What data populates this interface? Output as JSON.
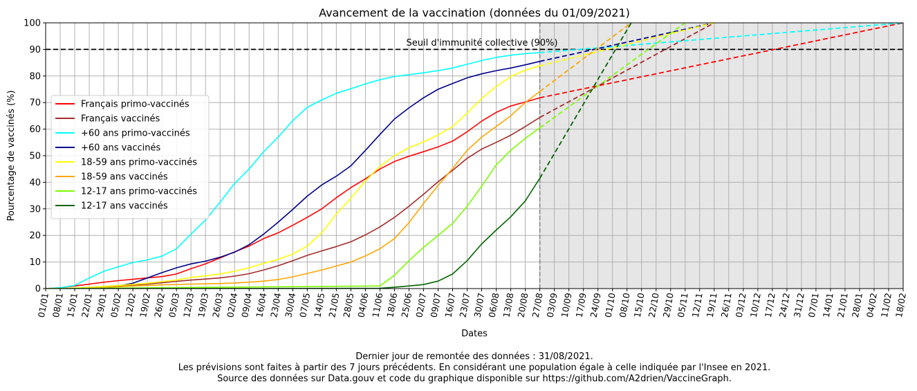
{
  "chart_data": {
    "type": "line",
    "title": "Avancement de la vaccination (données du 01/09/2021)",
    "xlabel": "Dates",
    "ylabel": "Pourcentage de vaccinés (%)",
    "ylim": [
      0,
      100
    ],
    "yticks": [
      0,
      10,
      20,
      30,
      40,
      50,
      60,
      70,
      80,
      90,
      100
    ],
    "xlim": [
      "2021-01-01",
      "2022-02-18"
    ],
    "x_tick_labels": [
      "01/01",
      "08/01",
      "15/01",
      "22/01",
      "29/01",
      "05/02",
      "12/02",
      "19/02",
      "26/02",
      "05/03",
      "12/03",
      "19/03",
      "26/03",
      "02/04",
      "09/04",
      "16/04",
      "23/04",
      "30/04",
      "07/05",
      "14/05",
      "21/05",
      "28/05",
      "04/06",
      "11/06",
      "18/06",
      "25/06",
      "02/07",
      "09/07",
      "16/07",
      "23/07",
      "30/07",
      "06/08",
      "13/08",
      "20/08",
      "27/08",
      "03/09",
      "10/09",
      "17/09",
      "24/09",
      "01/10",
      "08/10",
      "15/10",
      "22/10",
      "29/10",
      "05/11",
      "12/11",
      "19/11",
      "26/11",
      "03/12",
      "10/12",
      "17/12",
      "24/12",
      "31/12",
      "07/01",
      "14/01",
      "21/01",
      "28/01",
      "04/02",
      "11/02",
      "18/02"
    ],
    "grid": true,
    "legend_position": "center-left",
    "forecast_start": "2021-08-27",
    "forecast_region_color": "#e6e6e6",
    "threshold": {
      "value": 90,
      "label": "Seuil d'immunité collective (90%)",
      "color": "#000000"
    },
    "series": [
      {
        "name": "Français primo-vaccinés",
        "color": "#ff0000",
        "x": [
          "2021-01-01",
          "2021-01-08",
          "2021-01-15",
          "2021-01-22",
          "2021-01-29",
          "2021-02-05",
          "2021-02-12",
          "2021-02-19",
          "2021-02-26",
          "2021-03-05",
          "2021-03-12",
          "2021-03-19",
          "2021-03-26",
          "2021-04-02",
          "2021-04-09",
          "2021-04-16",
          "2021-04-23",
          "2021-04-30",
          "2021-05-07",
          "2021-05-14",
          "2021-05-21",
          "2021-05-28",
          "2021-06-04",
          "2021-06-11",
          "2021-06-18",
          "2021-06-25",
          "2021-07-02",
          "2021-07-09",
          "2021-07-16",
          "2021-07-23",
          "2021-07-30",
          "2021-08-06",
          "2021-08-13",
          "2021-08-20",
          "2021-08-27"
        ],
        "values": [
          0,
          0.3,
          1.0,
          1.7,
          2.4,
          3.0,
          3.5,
          4.0,
          4.5,
          5.5,
          7.5,
          9.3,
          11.5,
          13.8,
          16.0,
          18.8,
          21.0,
          23.8,
          26.8,
          30.0,
          34.2,
          38.0,
          41.3,
          45.0,
          47.8,
          49.8,
          51.5,
          53.3,
          55.5,
          59.0,
          63.0,
          66.3,
          68.7,
          70.2,
          71.8
        ],
        "forecast": {
          "x": [
            "2021-08-27",
            "2022-02-18"
          ],
          "values": [
            71.8,
            100
          ]
        }
      },
      {
        "name": "Français vaccinés",
        "color": "#a52a2a",
        "x": [
          "2021-01-01",
          "2021-01-08",
          "2021-01-15",
          "2021-01-22",
          "2021-01-29",
          "2021-02-05",
          "2021-02-12",
          "2021-02-19",
          "2021-02-26",
          "2021-03-05",
          "2021-03-12",
          "2021-03-19",
          "2021-03-26",
          "2021-04-02",
          "2021-04-09",
          "2021-04-16",
          "2021-04-23",
          "2021-04-30",
          "2021-05-07",
          "2021-05-14",
          "2021-05-21",
          "2021-05-28",
          "2021-06-04",
          "2021-06-11",
          "2021-06-18",
          "2021-06-25",
          "2021-07-02",
          "2021-07-09",
          "2021-07-16",
          "2021-07-23",
          "2021-07-30",
          "2021-08-06",
          "2021-08-13",
          "2021-08-20",
          "2021-08-27"
        ],
        "values": [
          0,
          0,
          0,
          0.2,
          0.5,
          0.9,
          1.3,
          1.7,
          2.2,
          2.7,
          3.2,
          3.6,
          4.0,
          4.7,
          5.6,
          7.0,
          8.6,
          10.5,
          12.5,
          14.2,
          15.8,
          17.6,
          20.2,
          23.2,
          26.8,
          31.0,
          35.5,
          40.2,
          44.5,
          49.0,
          52.5,
          55.0,
          57.7,
          61.0,
          64.4
        ],
        "forecast": {
          "x": [
            "2021-08-27",
            "2021-11-19"
          ],
          "values": [
            64.4,
            100
          ]
        }
      },
      {
        "name": "+60 ans primo-vaccinés",
        "color": "#00ffff",
        "x": [
          "2021-01-01",
          "2021-01-08",
          "2021-01-15",
          "2021-01-22",
          "2021-01-29",
          "2021-02-05",
          "2021-02-12",
          "2021-02-19",
          "2021-02-26",
          "2021-03-05",
          "2021-03-12",
          "2021-03-19",
          "2021-03-26",
          "2021-04-02",
          "2021-04-09",
          "2021-04-16",
          "2021-04-23",
          "2021-04-30",
          "2021-05-07",
          "2021-05-14",
          "2021-05-21",
          "2021-05-28",
          "2021-06-04",
          "2021-06-11",
          "2021-06-18",
          "2021-06-25",
          "2021-07-02",
          "2021-07-09",
          "2021-07-16",
          "2021-07-23",
          "2021-07-30",
          "2021-08-06",
          "2021-08-13",
          "2021-08-20",
          "2021-08-27"
        ],
        "values": [
          0,
          0.3,
          1.2,
          4.0,
          6.5,
          8.2,
          9.8,
          10.8,
          12.2,
          15.0,
          20.5,
          25.8,
          32.5,
          39.5,
          45.0,
          51.5,
          57.0,
          63.2,
          68.2,
          71.0,
          73.5,
          75.2,
          77.0,
          78.6,
          79.8,
          80.5,
          81.2,
          82.0,
          83.0,
          84.4,
          85.8,
          87.0,
          87.8,
          88.4,
          88.8
        ],
        "forecast": {
          "x": [
            "2021-08-27",
            "2022-02-18"
          ],
          "values": [
            88.8,
            100
          ]
        }
      },
      {
        "name": "+60 ans vaccinés",
        "color": "#00008b",
        "x": [
          "2021-01-01",
          "2021-01-08",
          "2021-01-15",
          "2021-01-22",
          "2021-01-29",
          "2021-02-05",
          "2021-02-12",
          "2021-02-19",
          "2021-02-26",
          "2021-03-05",
          "2021-03-12",
          "2021-03-19",
          "2021-03-26",
          "2021-04-02",
          "2021-04-09",
          "2021-04-16",
          "2021-04-23",
          "2021-04-30",
          "2021-05-07",
          "2021-05-14",
          "2021-05-21",
          "2021-05-28",
          "2021-06-04",
          "2021-06-11",
          "2021-06-18",
          "2021-06-25",
          "2021-07-02",
          "2021-07-09",
          "2021-07-16",
          "2021-07-23",
          "2021-07-30",
          "2021-08-06",
          "2021-08-13",
          "2021-08-20",
          "2021-08-27"
        ],
        "values": [
          0,
          0,
          0,
          0.2,
          0.5,
          1.0,
          2.0,
          4.0,
          6.0,
          7.8,
          9.3,
          10.3,
          11.8,
          13.7,
          16.5,
          20.5,
          25.0,
          29.8,
          34.8,
          39.0,
          42.3,
          46.2,
          52.0,
          58.0,
          63.8,
          68.0,
          71.8,
          75.0,
          77.2,
          79.3,
          80.8,
          82.0,
          83.0,
          84.2,
          85.5
        ],
        "forecast": {
          "x": [
            "2021-08-27",
            "2021-11-19"
          ],
          "values": [
            85.5,
            100
          ]
        }
      },
      {
        "name": "18-59 ans primo-vaccinés",
        "color": "#ffff00",
        "x": [
          "2021-01-01",
          "2021-01-08",
          "2021-01-15",
          "2021-01-22",
          "2021-01-29",
          "2021-02-05",
          "2021-02-12",
          "2021-02-19",
          "2021-02-26",
          "2021-03-05",
          "2021-03-12",
          "2021-03-19",
          "2021-03-26",
          "2021-04-02",
          "2021-04-09",
          "2021-04-16",
          "2021-04-23",
          "2021-04-30",
          "2021-05-07",
          "2021-05-14",
          "2021-05-21",
          "2021-05-28",
          "2021-06-04",
          "2021-06-11",
          "2021-06-18",
          "2021-06-25",
          "2021-07-02",
          "2021-07-09",
          "2021-07-16",
          "2021-07-23",
          "2021-07-30",
          "2021-08-06",
          "2021-08-13",
          "2021-08-20",
          "2021-08-27"
        ],
        "values": [
          0,
          0,
          0.2,
          0.5,
          0.8,
          1.2,
          1.6,
          2.0,
          2.6,
          3.2,
          4.2,
          4.8,
          5.5,
          6.5,
          7.8,
          9.5,
          11.0,
          13.0,
          16.0,
          21.0,
          28.0,
          34.0,
          40.5,
          46.0,
          50.0,
          53.0,
          55.2,
          57.8,
          61.0,
          66.0,
          71.5,
          76.0,
          79.8,
          82.2,
          83.8
        ],
        "forecast": {
          "x": [
            "2021-08-27",
            "2021-11-19"
          ],
          "values": [
            83.8,
            100
          ]
        }
      },
      {
        "name": "18-59 ans vaccinés",
        "color": "#ffa500",
        "x": [
          "2021-01-01",
          "2021-01-08",
          "2021-01-15",
          "2021-01-22",
          "2021-01-29",
          "2021-02-05",
          "2021-02-12",
          "2021-02-19",
          "2021-02-26",
          "2021-03-05",
          "2021-03-12",
          "2021-03-19",
          "2021-03-26",
          "2021-04-02",
          "2021-04-09",
          "2021-04-16",
          "2021-04-23",
          "2021-04-30",
          "2021-05-07",
          "2021-05-14",
          "2021-05-21",
          "2021-05-28",
          "2021-06-04",
          "2021-06-11",
          "2021-06-18",
          "2021-06-25",
          "2021-07-02",
          "2021-07-09",
          "2021-07-16",
          "2021-07-23",
          "2021-07-30",
          "2021-08-06",
          "2021-08-13",
          "2021-08-20",
          "2021-08-27"
        ],
        "values": [
          0,
          0,
          0,
          0.2,
          0.4,
          0.7,
          1.0,
          1.2,
          1.4,
          1.5,
          1.7,
          1.8,
          1.9,
          2.1,
          2.4,
          2.8,
          3.4,
          4.4,
          5.7,
          7.0,
          8.5,
          10.0,
          12.3,
          15.0,
          18.8,
          24.8,
          32.0,
          38.8,
          45.2,
          52.0,
          57.0,
          61.0,
          65.0,
          70.0,
          74.2
        ],
        "forecast": {
          "x": [
            "2021-08-27",
            "2021-10-10"
          ],
          "values": [
            74.2,
            100
          ]
        }
      },
      {
        "name": "12-17 ans primo-vaccinés",
        "color": "#7cfc00",
        "x": [
          "2021-01-01",
          "2021-06-11",
          "2021-06-18",
          "2021-06-25",
          "2021-07-02",
          "2021-07-09",
          "2021-07-16",
          "2021-07-23",
          "2021-07-30",
          "2021-08-06",
          "2021-08-13",
          "2021-08-20",
          "2021-08-27"
        ],
        "values": [
          0,
          1.0,
          5.0,
          10.5,
          15.5,
          20.0,
          24.5,
          31.0,
          38.5,
          46.5,
          52.0,
          56.5,
          60.5
        ],
        "forecast": {
          "x": [
            "2021-08-27",
            "2021-11-05"
          ],
          "values": [
            60.5,
            100
          ]
        }
      },
      {
        "name": "12-17 ans vaccinés",
        "color": "#006400",
        "x": [
          "2021-01-01",
          "2021-06-11",
          "2021-06-18",
          "2021-06-25",
          "2021-07-02",
          "2021-07-09",
          "2021-07-16",
          "2021-07-23",
          "2021-07-30",
          "2021-08-06",
          "2021-08-13",
          "2021-08-20",
          "2021-08-27"
        ],
        "values": [
          0,
          0.1,
          0.5,
          1.0,
          1.5,
          2.8,
          5.5,
          10.5,
          16.8,
          22.0,
          27.0,
          33.0,
          41.5
        ],
        "forecast": {
          "x": [
            "2021-08-27",
            "2021-10-10"
          ],
          "values": [
            41.5,
            100
          ]
        }
      }
    ]
  },
  "footer": {
    "line1": "Dernier jour de remontée des données : 31/08/2021.",
    "line2": "Les prévisions sont faites à partir des 7 jours précédents. En considérant une population égale à celle indiquée par l'Insee en 2021.",
    "line3": "Source des données sur Data.gouv et code du graphique disponible sur https://github.com/A2drien/VaccineGraph."
  }
}
